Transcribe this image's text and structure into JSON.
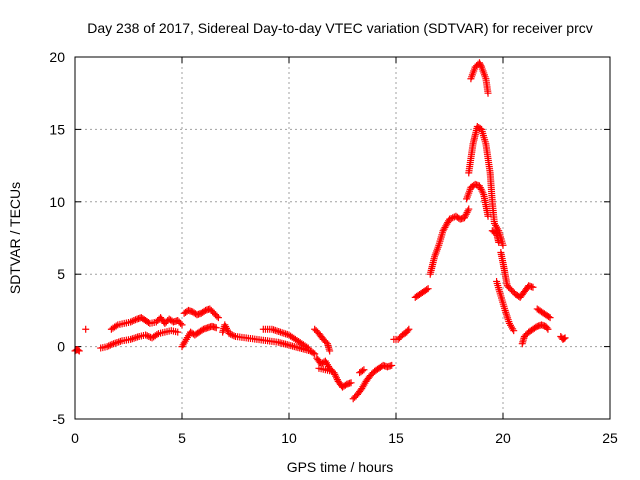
{
  "chart_data": {
    "type": "scatter",
    "title": "Day 238 of 2017, Sidereal Day-to-day VTEC variation (SDTVAR) for receiver prcv",
    "xlabel": "GPS time / hours",
    "ylabel": "SDTVAR / TECUs",
    "xlim": [
      0,
      25
    ],
    "ylim": [
      -5,
      20
    ],
    "xticks": [
      0,
      5,
      10,
      15,
      20,
      25
    ],
    "yticks": [
      -5,
      0,
      5,
      10,
      15,
      20
    ],
    "grid": true,
    "marker": "+",
    "marker_color": "#ff0000",
    "series": [
      {
        "name": "SDTVAR",
        "segments": [
          [
            [
              0.0,
              -0.3
            ],
            [
              0.1,
              -0.2
            ],
            [
              0.2,
              -0.3
            ]
          ],
          [
            [
              0.5,
              1.2
            ]
          ],
          [
            [
              1.2,
              -0.1
            ],
            [
              1.5,
              0.0
            ],
            [
              1.8,
              0.2
            ],
            [
              2.2,
              0.4
            ],
            [
              2.6,
              0.5
            ],
            [
              3.0,
              0.7
            ],
            [
              3.3,
              0.8
            ],
            [
              3.6,
              0.6
            ],
            [
              3.9,
              0.9
            ],
            [
              4.2,
              1.0
            ],
            [
              4.5,
              1.1
            ],
            [
              4.8,
              1.0
            ]
          ],
          [
            [
              1.7,
              1.2
            ],
            [
              2.0,
              1.5
            ],
            [
              2.3,
              1.6
            ],
            [
              2.6,
              1.7
            ],
            [
              2.9,
              1.9
            ],
            [
              3.1,
              2.0
            ],
            [
              3.3,
              1.8
            ],
            [
              3.5,
              1.6
            ],
            [
              3.8,
              1.7
            ],
            [
              4.0,
              2.0
            ],
            [
              4.2,
              1.6
            ],
            [
              4.4,
              1.9
            ],
            [
              4.6,
              1.7
            ],
            [
              4.8,
              1.8
            ],
            [
              5.0,
              1.5
            ]
          ],
          [
            [
              5.0,
              0.0
            ],
            [
              5.2,
              0.5
            ],
            [
              5.4,
              1.0
            ],
            [
              5.6,
              0.8
            ],
            [
              5.8,
              1.0
            ],
            [
              6.0,
              1.2
            ],
            [
              6.2,
              1.3
            ],
            [
              6.4,
              1.4
            ],
            [
              6.6,
              1.3
            ]
          ],
          [
            [
              5.1,
              2.3
            ],
            [
              5.3,
              2.5
            ],
            [
              5.5,
              2.4
            ],
            [
              5.7,
              2.2
            ],
            [
              5.9,
              2.3
            ],
            [
              6.1,
              2.5
            ],
            [
              6.3,
              2.6
            ],
            [
              6.5,
              2.3
            ],
            [
              6.7,
              2.0
            ]
          ],
          [
            [
              6.9,
              1.0
            ],
            [
              7.0,
              1.5
            ],
            [
              7.2,
              0.9
            ],
            [
              7.5,
              0.7
            ],
            [
              8.0,
              0.6
            ],
            [
              8.5,
              0.5
            ],
            [
              9.0,
              0.4
            ],
            [
              9.5,
              0.3
            ],
            [
              10.0,
              0.1
            ],
            [
              10.5,
              -0.1
            ],
            [
              11.0,
              -0.3
            ],
            [
              11.2,
              -0.5
            ]
          ],
          [
            [
              8.8,
              1.2
            ],
            [
              9.2,
              1.2
            ],
            [
              9.6,
              1.0
            ],
            [
              10.0,
              0.8
            ],
            [
              10.3,
              0.5
            ],
            [
              10.6,
              0.2
            ],
            [
              10.9,
              -0.1
            ]
          ],
          [
            [
              11.2,
              1.2
            ],
            [
              11.4,
              0.9
            ],
            [
              11.6,
              0.5
            ],
            [
              11.8,
              0.2
            ],
            [
              11.9,
              -0.3
            ]
          ],
          [
            [
              11.3,
              -0.8
            ],
            [
              11.5,
              -1.2
            ],
            [
              11.7,
              -1.0
            ],
            [
              11.9,
              -1.5
            ],
            [
              12.1,
              -1.8
            ],
            [
              12.3,
              -2.4
            ],
            [
              12.5,
              -2.8
            ],
            [
              12.7,
              -2.6
            ],
            [
              12.9,
              -2.5
            ]
          ],
          [
            [
              11.4,
              -1.5
            ],
            [
              11.7,
              -1.6
            ],
            [
              12.0,
              -1.7
            ]
          ],
          [
            [
              13.0,
              -3.6
            ],
            [
              13.2,
              -3.3
            ],
            [
              13.4,
              -2.9
            ],
            [
              13.6,
              -2.4
            ],
            [
              13.8,
              -2.0
            ],
            [
              14.0,
              -1.7
            ],
            [
              14.2,
              -1.5
            ],
            [
              14.4,
              -1.3
            ],
            [
              14.6,
              -1.4
            ],
            [
              14.8,
              -1.3
            ]
          ],
          [
            [
              13.3,
              -1.8
            ],
            [
              13.5,
              -1.6
            ]
          ],
          [
            [
              14.9,
              0.5
            ],
            [
              15.1,
              0.5
            ],
            [
              15.3,
              0.8
            ],
            [
              15.5,
              1.0
            ],
            [
              15.6,
              1.2
            ]
          ],
          [
            [
              15.9,
              3.4
            ],
            [
              16.1,
              3.6
            ],
            [
              16.3,
              3.8
            ],
            [
              16.5,
              4.0
            ]
          ],
          [
            [
              16.6,
              5.0
            ],
            [
              16.8,
              6.2
            ],
            [
              17.0,
              7.0
            ],
            [
              17.2,
              8.0
            ],
            [
              17.5,
              8.8
            ],
            [
              17.8,
              9.0
            ],
            [
              18.0,
              8.8
            ],
            [
              18.2,
              8.9
            ],
            [
              18.4,
              9.5
            ]
          ],
          [
            [
              18.3,
              10.2
            ],
            [
              18.5,
              11.0
            ],
            [
              18.7,
              11.2
            ],
            [
              18.9,
              11.1
            ],
            [
              19.1,
              10.5
            ],
            [
              19.3,
              9.0
            ]
          ],
          [
            [
              18.4,
              12.0
            ],
            [
              18.6,
              14.0
            ],
            [
              18.8,
              15.2
            ],
            [
              19.0,
              15.0
            ],
            [
              19.2,
              14.0
            ],
            [
              19.4,
              12.0
            ],
            [
              19.5,
              10.0
            ],
            [
              19.6,
              8.5
            ],
            [
              19.8,
              8.0
            ],
            [
              20.0,
              7.0
            ]
          ],
          [
            [
              18.5,
              18.5
            ],
            [
              18.7,
              19.3
            ],
            [
              18.9,
              19.6
            ],
            [
              19.0,
              19.3
            ],
            [
              19.2,
              18.5
            ],
            [
              19.3,
              17.5
            ]
          ],
          [
            [
              19.5,
              8.0
            ],
            [
              19.7,
              7.8
            ],
            [
              19.8,
              7.2
            ]
          ],
          [
            [
              19.9,
              6.5
            ],
            [
              20.0,
              5.8
            ],
            [
              20.1,
              5.0
            ],
            [
              20.2,
              4.2
            ],
            [
              20.4,
              3.9
            ],
            [
              20.6,
              3.6
            ],
            [
              20.8,
              3.4
            ],
            [
              21.0,
              3.8
            ],
            [
              21.2,
              4.2
            ],
            [
              21.4,
              4.1
            ]
          ],
          [
            [
              19.7,
              4.5
            ],
            [
              19.9,
              3.5
            ],
            [
              20.1,
              2.5
            ],
            [
              20.3,
              1.6
            ],
            [
              20.5,
              1.1
            ]
          ],
          [
            [
              20.9,
              0.2
            ],
            [
              21.0,
              0.7
            ],
            [
              21.2,
              1.0
            ],
            [
              21.4,
              1.2
            ],
            [
              21.6,
              1.4
            ],
            [
              21.8,
              1.5
            ],
            [
              22.0,
              1.4
            ],
            [
              22.1,
              1.2
            ]
          ],
          [
            [
              21.6,
              2.6
            ],
            [
              21.8,
              2.4
            ],
            [
              22.0,
              2.2
            ],
            [
              22.2,
              2.0
            ]
          ],
          [
            [
              22.7,
              0.7
            ],
            [
              22.8,
              0.5
            ],
            [
              22.9,
              0.6
            ]
          ]
        ]
      }
    ]
  }
}
